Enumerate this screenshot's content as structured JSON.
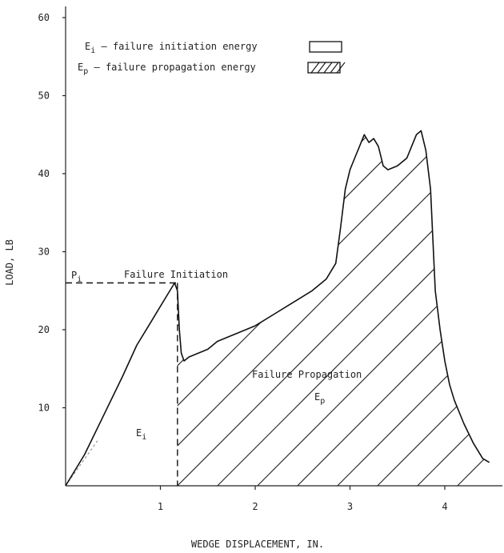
{
  "chart_data": {
    "type": "line",
    "xlabel": "WEDGE DISPLACEMENT, IN.",
    "ylabel": "LOAD, LB",
    "xlim": [
      0,
      4.6
    ],
    "ylim": [
      0,
      62
    ],
    "xticks": [
      "1",
      "2",
      "3",
      "4"
    ],
    "yticks": [
      "10",
      "20",
      "30",
      "40",
      "50",
      "60"
    ],
    "grid": false,
    "legend_position": "top-left",
    "legend": [
      {
        "symbol": "E",
        "subscript": "i",
        "text": " – failure initiation energy",
        "swatch": "open"
      },
      {
        "symbol": "E",
        "subscript": "p",
        "text": " – failure propagation energy",
        "swatch": "hatched"
      }
    ],
    "annotations": {
      "pi_symbol": "P",
      "pi_subscript": "i",
      "failure_initiation": "Failure Initiation",
      "failure_propagation": "Failure Propagation",
      "ei_symbol": "E",
      "ei_subscript": "i",
      "ep_symbol": "E",
      "ep_subscript": "p"
    },
    "initiation_load": 26,
    "initiation_displacement": 1.18,
    "series": [
      {
        "x": [
          0,
          0.2,
          0.4,
          0.6,
          0.75,
          0.9,
          1.05,
          1.15,
          1.18,
          1.2,
          1.22,
          1.25,
          1.3,
          1.4,
          1.5,
          1.6,
          1.7,
          1.8,
          2.0,
          2.2,
          2.4,
          2.6,
          2.75,
          2.85,
          2.9,
          2.95,
          3.0,
          3.05,
          3.1,
          3.15,
          3.2,
          3.25,
          3.3,
          3.35,
          3.4,
          3.5,
          3.6,
          3.65,
          3.7,
          3.75,
          3.8,
          3.85,
          3.88,
          3.9,
          3.95,
          4.0,
          4.05,
          4.1,
          4.2,
          4.3,
          4.4,
          4.47
        ],
        "y": [
          0,
          4,
          9,
          14,
          18,
          21,
          24,
          26,
          25,
          20,
          17,
          16,
          16.5,
          17,
          17.5,
          18.5,
          19,
          19.5,
          20.5,
          22,
          23.5,
          25,
          26.5,
          28.5,
          33,
          38,
          40.5,
          42,
          43.5,
          45,
          44,
          44.5,
          43.5,
          41,
          40.5,
          41,
          42,
          43.5,
          45,
          45.5,
          43,
          38,
          30,
          25,
          20,
          16,
          13,
          11,
          8,
          5.5,
          3.5,
          3
        ]
      }
    ]
  }
}
